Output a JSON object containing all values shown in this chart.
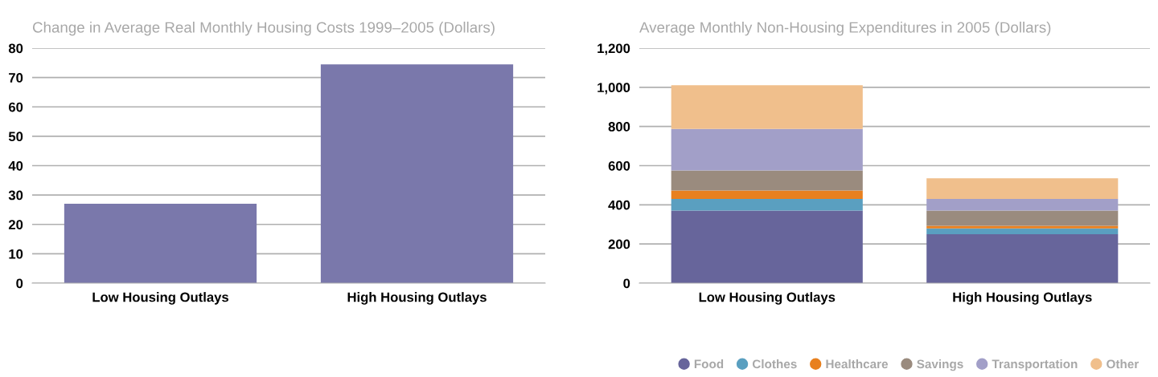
{
  "chart_data": [
    {
      "type": "bar",
      "title": "Change in Average Real Monthly Housing Costs 1999–2005 (Dollars)",
      "categories": [
        "Low Housing Outlays",
        "High Housing Outlays"
      ],
      "values": [
        27,
        74.5
      ],
      "color": "#7a78ab",
      "ylim": [
        0,
        80
      ],
      "yticks": [
        0,
        10,
        20,
        30,
        40,
        50,
        60,
        70,
        80
      ],
      "grid": "y",
      "legend": false
    },
    {
      "type": "bar",
      "title": "Average Monthly Non-Housing Expenditures in 2005 (Dollars)",
      "categories": [
        "Low Housing Outlays",
        "High Housing Outlays"
      ],
      "stacked": true,
      "series": [
        {
          "name": "Food",
          "color": "#67659b",
          "values": [
            371,
            250
          ]
        },
        {
          "name": "Clothes",
          "color": "#5a9fc0",
          "values": [
            59,
            30
          ]
        },
        {
          "name": "Healthcare",
          "color": "#e8801f",
          "values": [
            43,
            13
          ]
        },
        {
          "name": "Savings",
          "color": "#9a8b7e",
          "values": [
            102,
            78
          ]
        },
        {
          "name": "Transportation",
          "color": "#a29fc8",
          "values": [
            212,
            59
          ]
        },
        {
          "name": "Other",
          "color": "#f0bf8c",
          "values": [
            224,
            106
          ]
        }
      ],
      "ylim": [
        0,
        1200
      ],
      "yticks": [
        {
          "value": 0,
          "label": "0"
        },
        {
          "value": 200,
          "label": "200"
        },
        {
          "value": 400,
          "label": "400"
        },
        {
          "value": 600,
          "label": "600"
        },
        {
          "value": 800,
          "label": "800"
        },
        {
          "value": 1000,
          "label": "1,000"
        },
        {
          "value": 1200,
          "label": "1,200"
        }
      ],
      "grid": "y",
      "legend": "bottom right"
    }
  ]
}
